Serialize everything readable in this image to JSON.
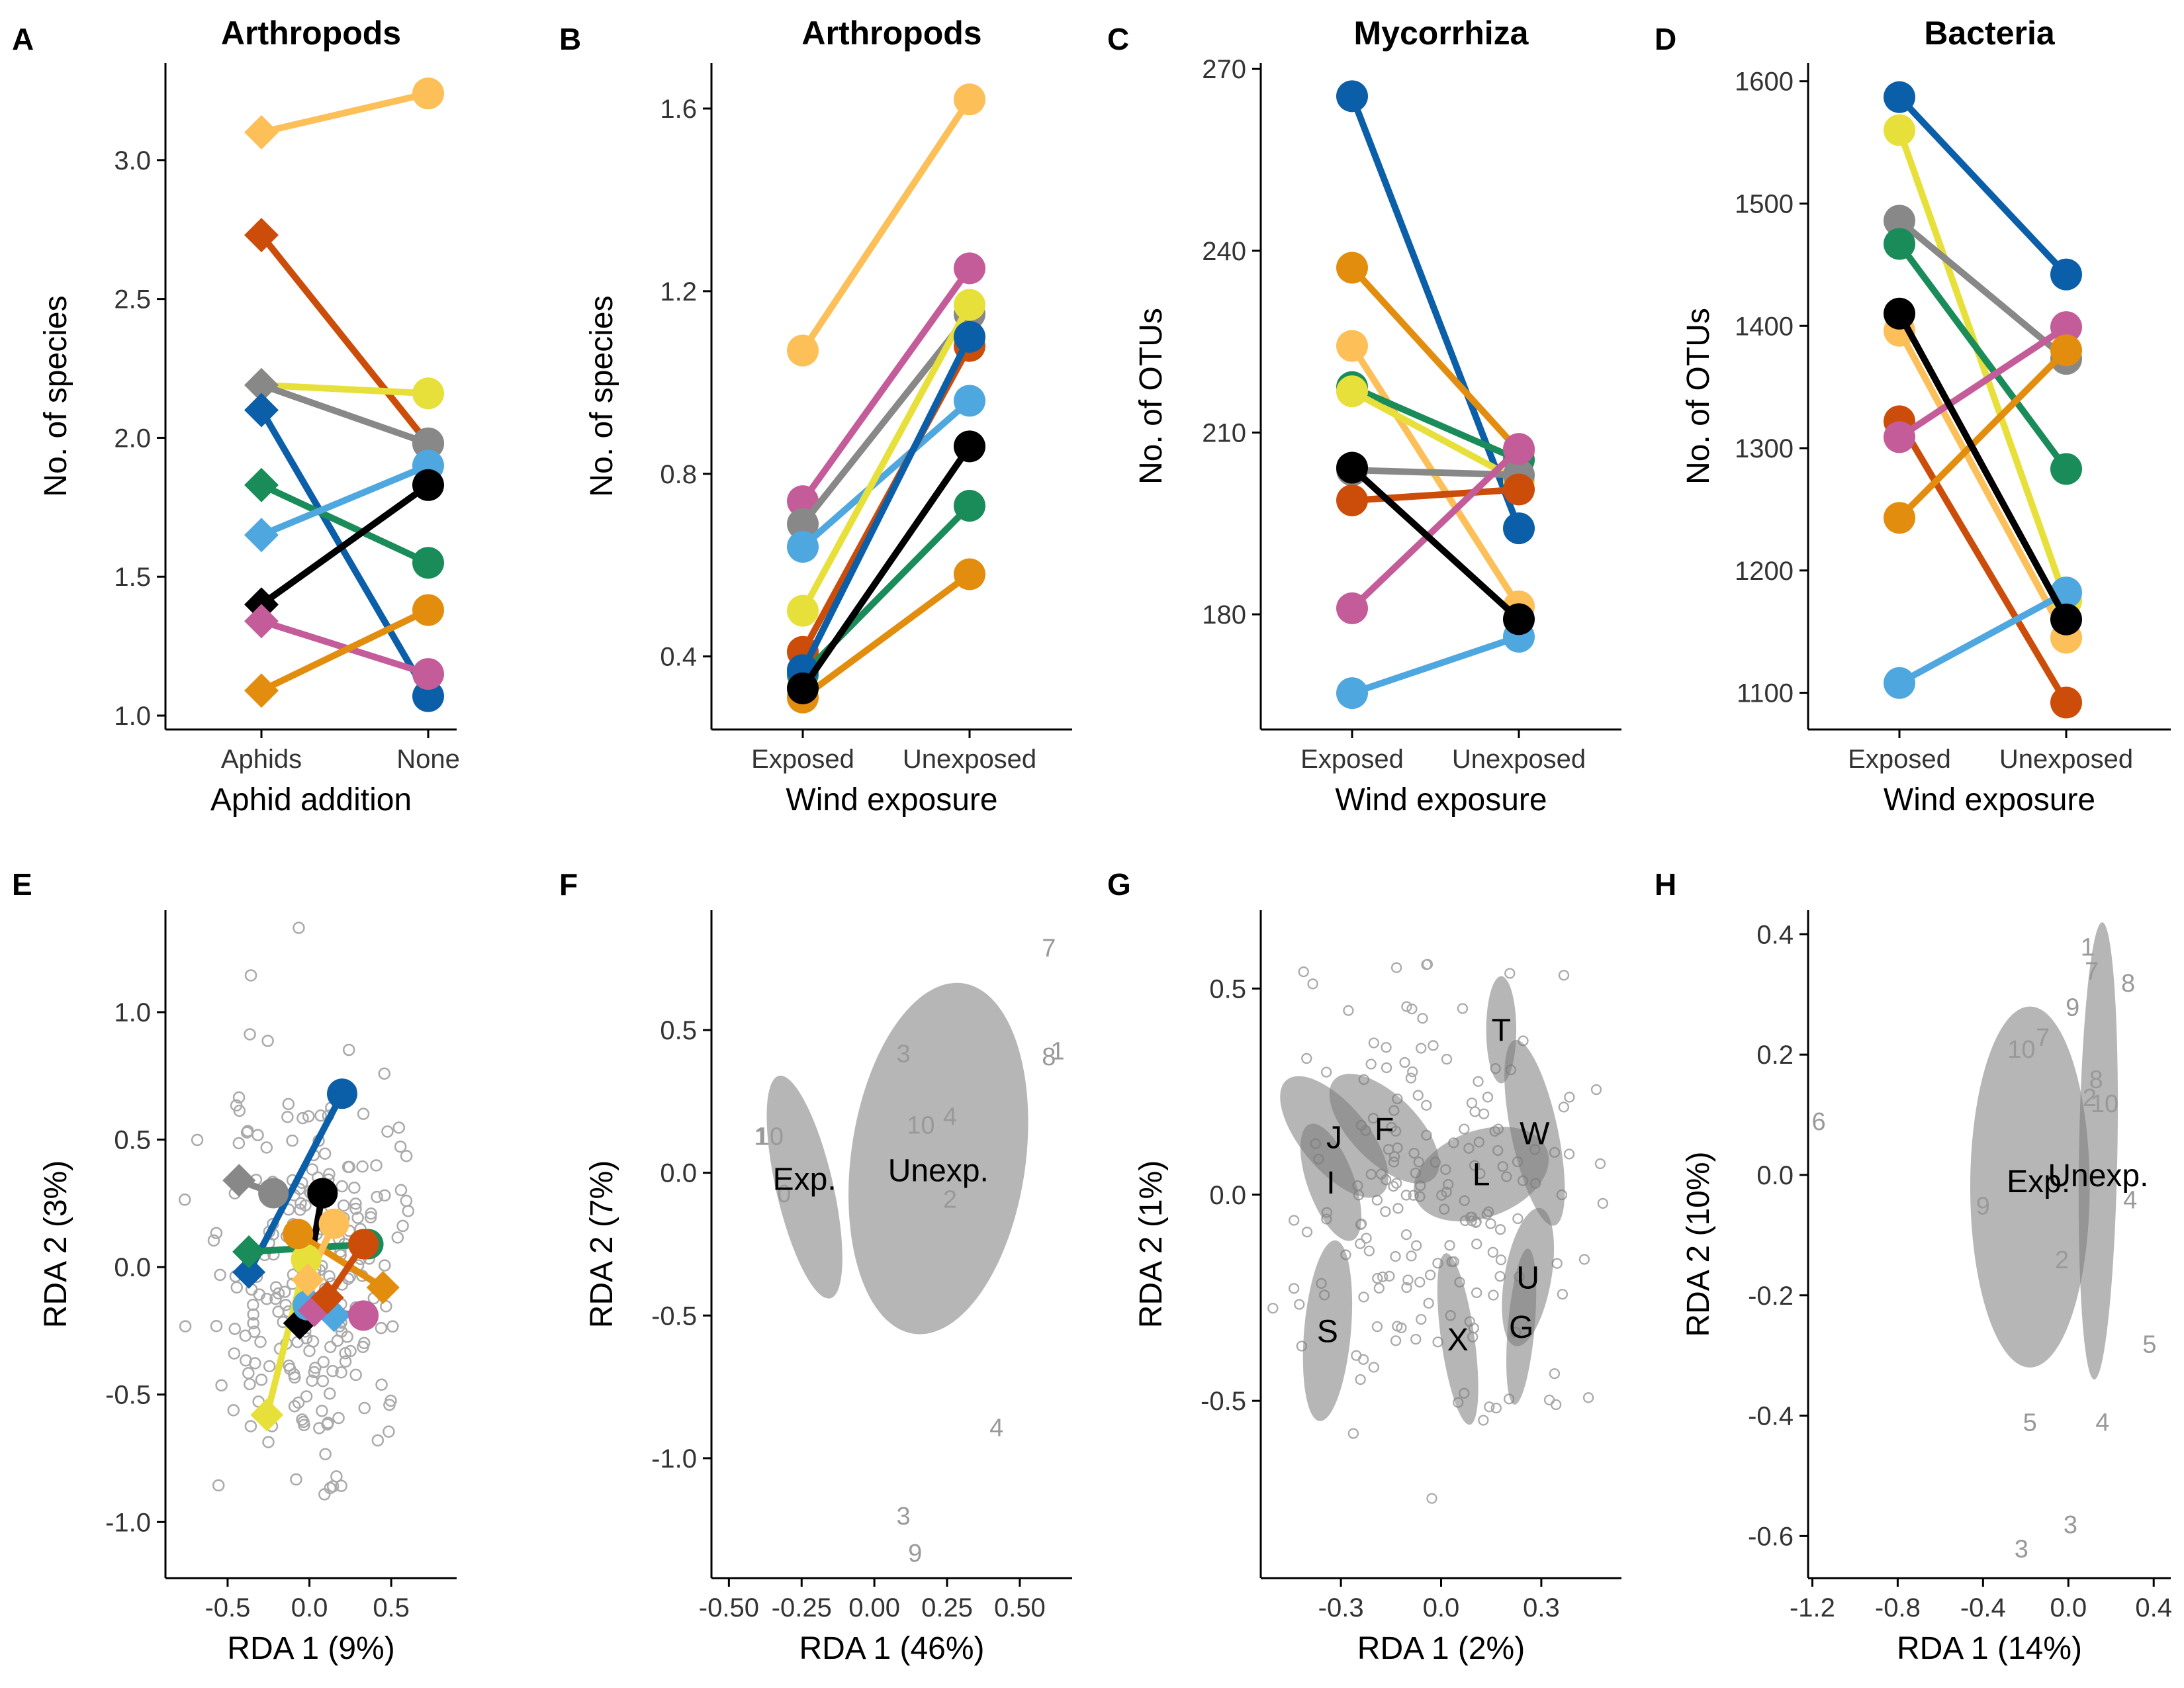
{
  "colors": {
    "c1": "#FDBF57",
    "c2": "#CC4C0A",
    "c3": "#E8E03A",
    "c4": "#888888",
    "c5": "#0B5EA8",
    "c6": "#1A8C5A",
    "c7": "#4FA7E0",
    "c8": "#000000",
    "c9": "#C55C9A",
    "c10": "#E38D0F"
  },
  "chart_data": [
    {
      "panel": "A",
      "type": "line",
      "title": "Arthropods",
      "xlabel": "Aphid addition",
      "ylabel": "No. of species",
      "categories": [
        "Aphids",
        "None"
      ],
      "ylim": [
        0.95,
        3.35
      ],
      "yticks": [
        1.0,
        1.5,
        2.0,
        2.5,
        3.0
      ],
      "ytick_labels": [
        "1.0",
        "1.5",
        "2.0",
        "2.5",
        "3.0"
      ],
      "series": [
        {
          "color": "c1",
          "values": [
            3.1,
            3.24
          ]
        },
        {
          "color": "c2",
          "values": [
            2.73,
            1.98
          ]
        },
        {
          "color": "c3",
          "values": [
            2.19,
            2.16
          ]
        },
        {
          "color": "c4",
          "values": [
            2.19,
            1.98
          ]
        },
        {
          "color": "c5",
          "values": [
            2.1,
            1.07
          ]
        },
        {
          "color": "c6",
          "values": [
            1.83,
            1.55
          ]
        },
        {
          "color": "c7",
          "values": [
            1.65,
            1.9
          ]
        },
        {
          "color": "c8",
          "values": [
            1.4,
            1.83
          ]
        },
        {
          "color": "c9",
          "values": [
            1.34,
            1.15
          ]
        },
        {
          "color": "c10",
          "values": [
            1.09,
            1.38
          ]
        }
      ]
    },
    {
      "panel": "B",
      "type": "line",
      "title": "Arthropods",
      "xlabel": "Wind exposure",
      "ylabel": "No. of species",
      "categories": [
        "Exposed",
        "Unexposed"
      ],
      "ylim": [
        0.24,
        1.7
      ],
      "yticks": [
        0.4,
        0.8,
        1.2,
        1.6
      ],
      "ytick_labels": [
        "0.4",
        "0.8",
        "1.2",
        "1.6"
      ],
      "series": [
        {
          "color": "c1",
          "values": [
            1.07,
            1.62
          ]
        },
        {
          "color": "c9",
          "values": [
            0.74,
            1.25
          ]
        },
        {
          "color": "c4",
          "values": [
            0.69,
            1.15
          ]
        },
        {
          "color": "c7",
          "values": [
            0.64,
            0.96
          ]
        },
        {
          "color": "c3",
          "values": [
            0.5,
            1.17
          ]
        },
        {
          "color": "c2",
          "values": [
            0.41,
            1.08
          ]
        },
        {
          "color": "c6",
          "values": [
            0.36,
            0.73
          ]
        },
        {
          "color": "c5",
          "values": [
            0.37,
            1.1
          ]
        },
        {
          "color": "c10",
          "values": [
            0.31,
            0.58
          ]
        },
        {
          "color": "c8",
          "values": [
            0.33,
            0.86
          ]
        }
      ]
    },
    {
      "panel": "C",
      "type": "line",
      "title": "Mycorrhiza",
      "xlabel": "Wind exposure",
      "ylabel": "No. of OTUs",
      "categories": [
        "Exposed",
        "Unexposed"
      ],
      "ylim": [
        161,
        271
      ],
      "yticks": [
        180,
        210,
        240,
        270
      ],
      "ytick_labels": [
        "180",
        "210",
        "240",
        "270"
      ],
      "series": [
        {
          "color": "c5",
          "values": [
            265.5,
            194.2
          ]
        },
        {
          "color": "c10",
          "values": [
            237.2,
            207
          ]
        },
        {
          "color": "c1",
          "values": [
            224.3,
            181.3
          ]
        },
        {
          "color": "c6",
          "values": [
            217.5,
            205.5
          ]
        },
        {
          "color": "c3",
          "values": [
            216.8,
            202
          ]
        },
        {
          "color": "c4",
          "values": [
            203.8,
            203
          ]
        },
        {
          "color": "c2",
          "values": [
            198.8,
            200.6
          ]
        },
        {
          "color": "c9",
          "values": [
            181,
            207.3
          ]
        },
        {
          "color": "c7",
          "values": [
            167,
            176.3
          ]
        },
        {
          "color": "c8",
          "values": [
            204.2,
            179.2
          ]
        }
      ]
    },
    {
      "panel": "D",
      "type": "line",
      "title": "Bacteria",
      "xlabel": "Wind exposure",
      "ylabel": "No. of OTUs",
      "categories": [
        "Exposed",
        "Unexposed"
      ],
      "ylim": [
        1070,
        1615
      ],
      "yticks": [
        1100,
        1200,
        1300,
        1400,
        1500,
        1600
      ],
      "ytick_labels": [
        "1100",
        "1200",
        "1300",
        "1400",
        "1500",
        "1600"
      ],
      "series": [
        {
          "color": "c5",
          "values": [
            1587,
            1442
          ]
        },
        {
          "color": "c3",
          "values": [
            1560,
            1175
          ]
        },
        {
          "color": "c4",
          "values": [
            1486,
            1373
          ]
        },
        {
          "color": "c6",
          "values": [
            1467,
            1283
          ]
        },
        {
          "color": "c1",
          "values": [
            1396,
            1145
          ]
        },
        {
          "color": "c2",
          "values": [
            1322,
            1092
          ]
        },
        {
          "color": "c9",
          "values": [
            1309,
            1399
          ]
        },
        {
          "color": "c10",
          "values": [
            1243,
            1380
          ]
        },
        {
          "color": "c7",
          "values": [
            1108,
            1182
          ]
        },
        {
          "color": "c8",
          "values": [
            1410,
            1160
          ]
        }
      ]
    },
    {
      "panel": "E",
      "type": "scatter",
      "xlabel": "RDA 1 (9%)",
      "ylabel": "RDA 2 (3%)",
      "xlim": [
        -0.88,
        0.9
      ],
      "ylim": [
        -1.22,
        1.4
      ],
      "xticks": [
        -0.5,
        0.0,
        0.5
      ],
      "xtick_labels": [
        "-0.5",
        "0.0",
        "0.5"
      ],
      "yticks": [
        -1.0,
        -0.5,
        0.0,
        0.5,
        1.0
      ],
      "ytick_labels": [
        "-1.0",
        "-0.5",
        "0.0",
        "0.5",
        "1.0"
      ],
      "segments": [
        {
          "color": "c4",
          "from": [
            -0.43,
            0.34
          ],
          "to": [
            -0.22,
            0.29
          ]
        },
        {
          "color": "c5",
          "from": [
            -0.37,
            -0.02
          ],
          "to": [
            0.2,
            0.68
          ]
        },
        {
          "color": "c6",
          "from": [
            -0.37,
            0.06
          ],
          "to": [
            0.36,
            0.09
          ]
        },
        {
          "color": "c8",
          "from": [
            -0.06,
            -0.22
          ],
          "to": [
            0.08,
            0.29
          ]
        },
        {
          "color": "c3",
          "from": [
            -0.26,
            -0.58
          ],
          "to": [
            -0.02,
            0.03
          ]
        },
        {
          "color": "c7",
          "from": [
            0.15,
            -0.19
          ],
          "to": [
            -0.01,
            -0.15
          ]
        },
        {
          "color": "c9",
          "from": [
            0.03,
            -0.17
          ],
          "to": [
            0.33,
            -0.19
          ]
        },
        {
          "color": "c10",
          "from": [
            0.45,
            -0.08
          ],
          "to": [
            -0.07,
            0.13
          ]
        },
        {
          "color": "c2",
          "from": [
            0.11,
            -0.12
          ],
          "to": [
            0.33,
            0.09
          ]
        },
        {
          "color": "c1",
          "from": [
            -0.01,
            -0.05
          ],
          "to": [
            0.15,
            0.17
          ]
        }
      ]
    },
    {
      "panel": "F",
      "type": "scatter",
      "xlabel": "RDA 1 (46%)",
      "ylabel": "RDA 2 (7%)",
      "xlim": [
        -0.56,
        0.68
      ],
      "ylim": [
        -1.42,
        0.92
      ],
      "xticks": [
        -0.5,
        -0.25,
        0.0,
        0.25,
        0.5
      ],
      "xtick_labels": [
        "-0.50",
        "-0.25",
        "0.00",
        "0.25",
        "0.50"
      ],
      "yticks": [
        -1.0,
        -0.5,
        0.0,
        0.5
      ],
      "ytick_labels": [
        "-1.0",
        "-0.5",
        "0.0",
        "0.5"
      ],
      "ellipses": [
        {
          "label": "Exp.",
          "cx": -0.24,
          "cy": -0.05,
          "rx": 0.098,
          "ry": 0.4,
          "rot": -13,
          "lx": -0.24,
          "ly": -0.02
        },
        {
          "label": "Unexp.",
          "cx": 0.22,
          "cy": 0.05,
          "rx": 0.3,
          "ry": 0.62,
          "rot": 8,
          "lx": 0.22,
          "ly": 0.01
        }
      ],
      "labels": [
        {
          "t": "7",
          "x": 0.6,
          "y": 0.79
        },
        {
          "t": "8",
          "x": 0.6,
          "y": 0.41
        },
        {
          "t": "1",
          "x": 0.63,
          "y": 0.43
        },
        {
          "t": "3",
          "x": 0.1,
          "y": 0.42
        },
        {
          "t": "10",
          "x": 0.16,
          "y": 0.17
        },
        {
          "t": "4",
          "x": 0.26,
          "y": 0.2
        },
        {
          "t": "2",
          "x": 0.26,
          "y": -0.09
        },
        {
          "t": "10",
          "x": -0.36,
          "y": 0.13
        },
        {
          "t": "1",
          "x": -0.39,
          "y": 0.13
        },
        {
          "t": "0",
          "x": -0.31,
          "y": -0.07
        },
        {
          "t": "4",
          "x": 0.42,
          "y": -0.89
        },
        {
          "t": "3",
          "x": 0.1,
          "y": -1.2
        },
        {
          "t": "9",
          "x": 0.14,
          "y": -1.33
        }
      ]
    },
    {
      "panel": "G",
      "type": "scatter",
      "xlabel": "RDA 1 (2%)",
      "ylabel": "RDA 2 (1%)",
      "xlim": [
        -0.54,
        0.54
      ],
      "ylim": [
        -0.93,
        0.69
      ],
      "xticks": [
        -0.3,
        0.0,
        0.3
      ],
      "xtick_labels": [
        "-0.3",
        "0.0",
        "0.3"
      ],
      "yticks": [
        -0.5,
        0.0,
        0.5
      ],
      "ytick_labels": [
        "-0.5",
        "0.0",
        "0.5"
      ],
      "ellipses": [
        {
          "label": "T",
          "cx": 0.18,
          "cy": 0.4,
          "rx": 0.045,
          "ry": 0.13,
          "rot": 0
        },
        {
          "label": "W",
          "cx": 0.28,
          "cy": 0.15,
          "rx": 0.07,
          "ry": 0.23,
          "rot": -12
        },
        {
          "label": "J",
          "cx": -0.32,
          "cy": 0.14,
          "rx": 0.1,
          "ry": 0.18,
          "rot": -40
        },
        {
          "label": "F",
          "cx": -0.17,
          "cy": 0.16,
          "rx": 0.1,
          "ry": 0.17,
          "rot": -45
        },
        {
          "label": "I",
          "cx": -0.33,
          "cy": 0.03,
          "rx": 0.07,
          "ry": 0.15,
          "rot": -20
        },
        {
          "label": "L",
          "cx": 0.12,
          "cy": 0.05,
          "rx": 0.13,
          "ry": 0.17,
          "rot": 70
        },
        {
          "label": "U",
          "cx": 0.26,
          "cy": -0.2,
          "rx": 0.07,
          "ry": 0.17,
          "rot": 10
        },
        {
          "label": "G",
          "cx": 0.24,
          "cy": -0.32,
          "rx": 0.04,
          "ry": 0.19,
          "rot": 5
        },
        {
          "label": "S",
          "cx": -0.34,
          "cy": -0.33,
          "rx": 0.07,
          "ry": 0.22,
          "rot": 5
        },
        {
          "label": "X",
          "cx": 0.05,
          "cy": -0.35,
          "rx": 0.05,
          "ry": 0.21,
          "rot": -8
        }
      ]
    },
    {
      "panel": "H",
      "type": "scatter",
      "xlabel": "RDA 1 (14%)",
      "ylabel": "RDA 2 (10%)",
      "xlim": [
        -1.22,
        0.48
      ],
      "ylim": [
        -0.67,
        0.44
      ],
      "xticks": [
        -1.2,
        -0.8,
        -0.4,
        0.0,
        0.4
      ],
      "xtick_labels": [
        "-1.2",
        "-0.8",
        "-0.4",
        "0.0",
        "0.4"
      ],
      "yticks": [
        -0.6,
        -0.4,
        -0.2,
        0.0,
        0.2,
        0.4
      ],
      "ytick_labels": [
        "-0.6",
        "-0.4",
        "-0.2",
        "0.0",
        "0.2",
        "0.4"
      ],
      "ellipses": [
        {
          "label": "Exp.",
          "cx": -0.18,
          "cy": -0.02,
          "rx": 0.28,
          "ry": 0.3,
          "rot": 0,
          "lx": -0.14,
          "ly": -0.01
        },
        {
          "label": "Unexp.",
          "cx": 0.14,
          "cy": 0.04,
          "rx": 0.09,
          "ry": 0.38,
          "rot": 1,
          "lx": 0.14,
          "ly": 0.0
        }
      ],
      "labels": [
        {
          "t": "1",
          "x": 0.09,
          "y": 0.38
        },
        {
          "t": "7",
          "x": 0.11,
          "y": 0.34
        },
        {
          "t": "8",
          "x": 0.28,
          "y": 0.32
        },
        {
          "t": "9",
          "x": 0.02,
          "y": 0.28
        },
        {
          "t": "7",
          "x": -0.12,
          "y": 0.23
        },
        {
          "t": "10",
          "x": -0.22,
          "y": 0.21
        },
        {
          "t": "8",
          "x": 0.13,
          "y": 0.16
        },
        {
          "t": "2",
          "x": 0.1,
          "y": 0.13
        },
        {
          "t": "10",
          "x": 0.17,
          "y": 0.12
        },
        {
          "t": "6",
          "x": -1.17,
          "y": 0.09
        },
        {
          "t": "9",
          "x": -0.4,
          "y": -0.05
        },
        {
          "t": "4",
          "x": 0.29,
          "y": -0.04
        },
        {
          "t": "2",
          "x": -0.03,
          "y": -0.14
        },
        {
          "t": "5",
          "x": 0.38,
          "y": -0.28
        },
        {
          "t": "5",
          "x": -0.18,
          "y": -0.41
        },
        {
          "t": "4",
          "x": 0.16,
          "y": -0.41
        },
        {
          "t": "3",
          "x": 0.01,
          "y": -0.58
        },
        {
          "t": "3",
          "x": -0.22,
          "y": -0.62
        }
      ]
    }
  ]
}
